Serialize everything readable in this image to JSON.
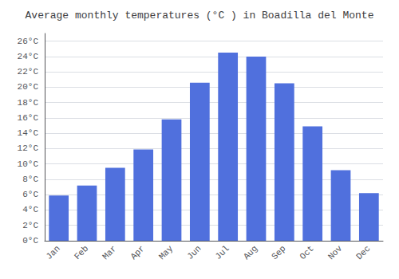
{
  "chart_data": {
    "type": "bar",
    "title": "Average monthly temperatures (°C ) in Boadilla del Monte",
    "categories": [
      "Jan",
      "Feb",
      "Mar",
      "Apr",
      "May",
      "Jun",
      "Jul",
      "Aug",
      "Sep",
      "Oct",
      "Nov",
      "Dec"
    ],
    "values": [
      5.9,
      7.2,
      9.5,
      11.9,
      15.8,
      20.6,
      24.5,
      24.0,
      20.5,
      14.9,
      9.2,
      6.2
    ],
    "ylim": [
      0,
      27
    ],
    "yticks": [
      {
        "value": 0,
        "label": "0°C"
      },
      {
        "value": 2,
        "label": "2°C"
      },
      {
        "value": 4,
        "label": "4°C"
      },
      {
        "value": 6,
        "label": "6°C"
      },
      {
        "value": 8,
        "label": "8°C"
      },
      {
        "value": 10,
        "label": "10°C"
      },
      {
        "value": 12,
        "label": "12°C"
      },
      {
        "value": 14,
        "label": "14°C"
      },
      {
        "value": 16,
        "label": "16°C"
      },
      {
        "value": 18,
        "label": "18°C"
      },
      {
        "value": 20,
        "label": "20°C"
      },
      {
        "value": 22,
        "label": "22°C"
      },
      {
        "value": 24,
        "label": "24°C"
      },
      {
        "value": 26,
        "label": "26°C"
      }
    ],
    "grid": true
  }
}
